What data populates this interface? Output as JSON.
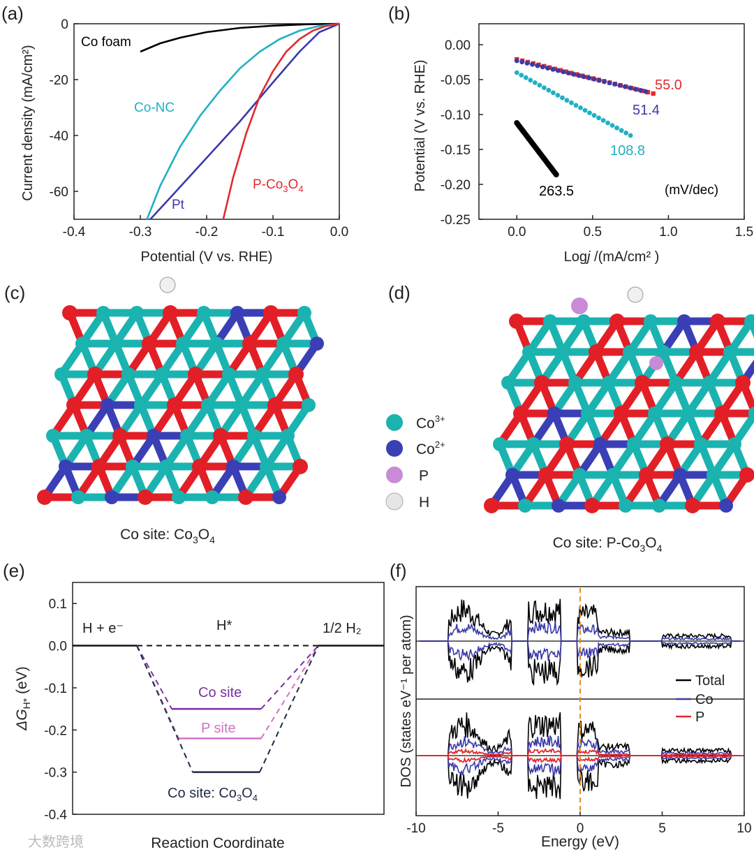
{
  "panels": {
    "a": {
      "label": "(a)"
    },
    "b": {
      "label": "(b)"
    },
    "c": {
      "label": "(c)",
      "caption_prefix": "Co site: Co",
      "caption_sub1": "3",
      "caption_mid": "O",
      "caption_sub2": "4"
    },
    "d": {
      "label": "(d)",
      "caption_prefix": "Co site: P-Co",
      "caption_sub1": "3",
      "caption_mid": "O",
      "caption_sub2": "4"
    },
    "e": {
      "label": "(e)"
    },
    "f": {
      "label": "(f)"
    }
  },
  "legend_atoms": [
    {
      "symbol": "Co",
      "sup": "3+",
      "color": "#1bb3b0"
    },
    {
      "symbol": "Co",
      "sup": "2+",
      "color": "#3b3fb5"
    },
    {
      "symbol": "P",
      "sup": "",
      "color": "#c98bd6"
    },
    {
      "symbol": "H",
      "sup": "",
      "color": "#e6e6e6"
    }
  ],
  "watermark": "大数跨境",
  "chart_data": [
    {
      "id": "a",
      "type": "line",
      "xlabel": "Potential (V vs. RHE)",
      "ylabel": "Current density (mA/cm²)",
      "xlim": [
        -0.4,
        0.0
      ],
      "ylim": [
        -70,
        0
      ],
      "xticks": [
        "-0.4",
        "-0.3",
        "-0.2",
        "-0.1",
        "0.0"
      ],
      "yticks": [
        "0",
        "-20",
        "-40",
        "-60"
      ],
      "series": [
        {
          "name": "Co foam",
          "color": "#000000",
          "x": [
            -0.3,
            -0.27,
            -0.24,
            -0.2,
            -0.15,
            -0.1,
            -0.05,
            0.0
          ],
          "y": [
            -10,
            -7,
            -5,
            -3,
            -1.5,
            -0.7,
            -0.2,
            0
          ]
        },
        {
          "name": "Co-NC",
          "color": "#1fb0c4",
          "x": [
            -0.29,
            -0.27,
            -0.24,
            -0.21,
            -0.18,
            -0.15,
            -0.12,
            -0.09,
            -0.06,
            -0.03,
            0.0
          ],
          "y": [
            -70,
            -58,
            -44,
            -33,
            -24,
            -16,
            -10,
            -5.5,
            -2.5,
            -0.8,
            0
          ]
        },
        {
          "name": "Pt",
          "color": "#3a3aa8",
          "x": [
            -0.285,
            -0.25,
            -0.2,
            -0.15,
            -0.1,
            -0.06,
            -0.03,
            0.0
          ],
          "y": [
            -70,
            -61,
            -48,
            -35,
            -21,
            -10,
            -3,
            0
          ]
        },
        {
          "name": "P-Co₃O₄",
          "color": "#e2292e",
          "x": [
            -0.175,
            -0.16,
            -0.14,
            -0.12,
            -0.1,
            -0.08,
            -0.06,
            -0.04,
            -0.02,
            0.0
          ],
          "y": [
            -70,
            -55,
            -39,
            -26,
            -17,
            -10,
            -5.5,
            -2.5,
            -0.8,
            0
          ]
        }
      ],
      "labels": [
        {
          "text": "Co foam",
          "color": "#000000"
        },
        {
          "text": "Co-NC",
          "color": "#1fb0c4"
        },
        {
          "text": "Pt",
          "color": "#3a3aa8"
        },
        {
          "text": "P-Co",
          "sub1": "3",
          "mid": "O",
          "sub2": "4",
          "color": "#e2292e"
        }
      ]
    },
    {
      "id": "b",
      "type": "scatter",
      "xlabel_pre": "Log",
      "xlabel_it": "j",
      "xlabel_post": " /(mA/cm² )",
      "ylabel": "Potential (V vs. RHE)",
      "xlim": [
        -0.25,
        1.5
      ],
      "ylim": [
        -0.25,
        0.03
      ],
      "xticks": [
        "0.0",
        "0.5",
        "1.0",
        "1.5"
      ],
      "yticks": [
        "0.00",
        "-0.05",
        "-0.10",
        "-0.15",
        "-0.20",
        "-0.25"
      ],
      "units_note": "(mV/dec)",
      "series": [
        {
          "name": "P-Co3O4",
          "slope_label": "55.0",
          "color": "#e2292e",
          "x0": 0.0,
          "x1": 0.9,
          "y0": -0.021,
          "y1": -0.07
        },
        {
          "name": "Pt",
          "slope_label": "51.4",
          "color": "#3a3aa8",
          "x0": 0.0,
          "x1": 0.85,
          "y0": -0.023,
          "y1": -0.067
        },
        {
          "name": "Co-NC",
          "slope_label": "108.8",
          "color": "#1fb0c4",
          "x0": 0.0,
          "x1": 0.75,
          "y0": -0.04,
          "y1": -0.13
        },
        {
          "name": "Co foam",
          "slope_label": "263.5",
          "color": "#000000",
          "x0": 0.0,
          "x1": 0.26,
          "y0": -0.112,
          "y1": -0.186
        }
      ]
    },
    {
      "id": "e",
      "type": "line",
      "xlabel": "Reaction Coordinate",
      "ylabel_pre": "ΔG",
      "ylabel_sub": "H*",
      "ylabel_post": " (eV)",
      "ylim": [
        -0.4,
        0.15
      ],
      "yticks": [
        "0.1",
        "0.0",
        "-0.1",
        "-0.2",
        "-0.3",
        "-0.4"
      ],
      "states": [
        "H + e⁻",
        "H*",
        "1/2 H₂"
      ],
      "series": [
        {
          "name": "Co site",
          "color": "#7a2fa0",
          "value": -0.15
        },
        {
          "name": "P site",
          "color": "#d470c6",
          "value": -0.22
        },
        {
          "name": "Co site: Co3O4",
          "color": "#1f2a44",
          "value": -0.3
        }
      ],
      "label_co": "Co site",
      "label_p": "P site",
      "label_co3o4_pre": "Co site: Co",
      "label_co3o4_s1": "3",
      "label_co3o4_mid": "O",
      "label_co3o4_s2": "4"
    },
    {
      "id": "f",
      "type": "line",
      "xlabel": "Energy (eV)",
      "ylabel": "DOS (states eV⁻¹ per atom)",
      "xlim": [
        -10,
        10
      ],
      "xticks": [
        "-10",
        "-5",
        "0",
        "5",
        "10"
      ],
      "fermi_level": 0,
      "legend": [
        {
          "name": "Total",
          "color": "#000000"
        },
        {
          "name": "Co",
          "color": "#3a3aa8"
        },
        {
          "name": "P",
          "color": "#e2292e"
        }
      ]
    }
  ]
}
